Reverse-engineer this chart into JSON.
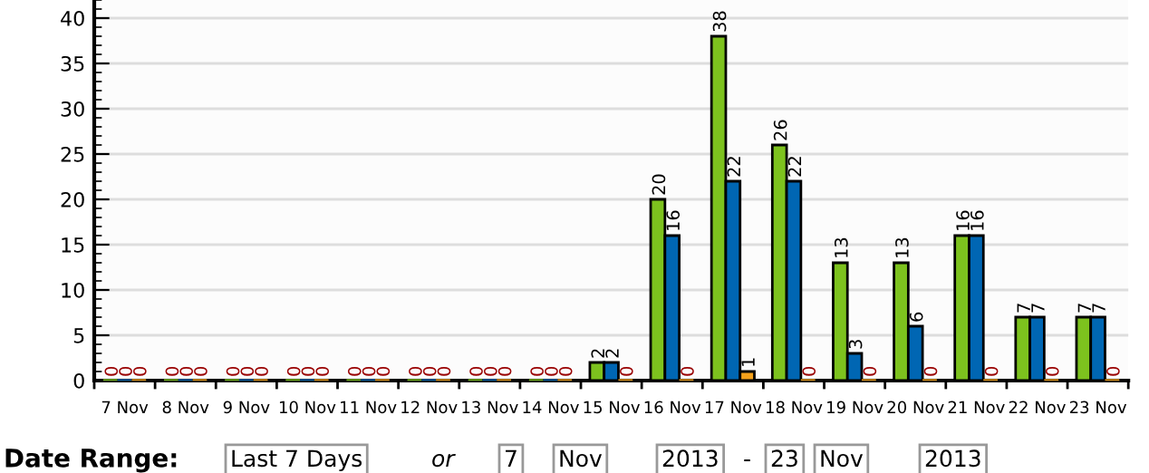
{
  "chart_data": {
    "type": "bar",
    "categories": [
      "7 Nov",
      "8 Nov",
      "9 Nov",
      "10 Nov",
      "11 Nov",
      "12 Nov",
      "13 Nov",
      "14 Nov",
      "15 Nov",
      "16 Nov",
      "17 Nov",
      "18 Nov",
      "19 Nov",
      "20 Nov",
      "21 Nov",
      "22 Nov",
      "23 Nov"
    ],
    "series": [
      {
        "color": "#7dc21e",
        "values": [
          0,
          0,
          0,
          0,
          0,
          0,
          0,
          0,
          2,
          20,
          38,
          26,
          13,
          13,
          16,
          7,
          7
        ]
      },
      {
        "color": "#0066b3",
        "values": [
          0,
          0,
          0,
          0,
          0,
          0,
          0,
          0,
          2,
          16,
          22,
          22,
          3,
          6,
          16,
          7,
          7
        ]
      },
      {
        "color": "#f5a21b",
        "values": [
          0,
          0,
          0,
          0,
          0,
          0,
          0,
          0,
          0,
          0,
          1,
          0,
          0,
          0,
          0,
          0,
          0
        ]
      }
    ],
    "ylim": [
      0,
      42
    ],
    "yticks": [
      0,
      5,
      10,
      15,
      20,
      25,
      30,
      35,
      40
    ],
    "grid": "y",
    "data_labels": true,
    "annotations": [
      "Date Range:",
      "Last 7 Days",
      "or",
      "7",
      "Nov",
      "2013",
      "-",
      "23",
      "Nov",
      "2013"
    ]
  }
}
